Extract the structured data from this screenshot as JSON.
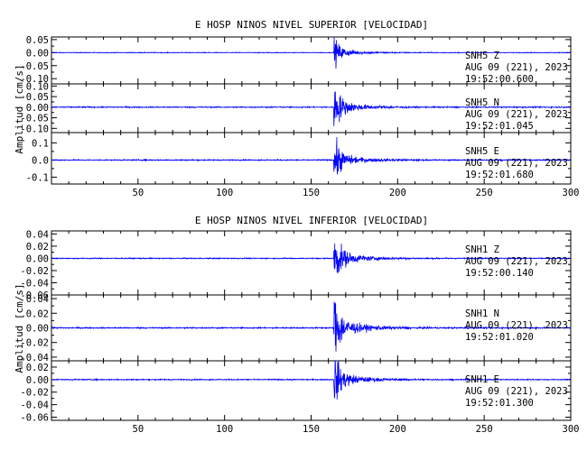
{
  "chart_data": [
    {
      "type": "line",
      "title": "E HOSP NINOS NIVEL SUPERIOR [VELOCIDAD]",
      "ylabel": "Amplitud [cm/s]",
      "xlim": [
        0,
        300
      ],
      "xticks": [
        "50",
        "100",
        "150",
        "200",
        "250",
        "300"
      ],
      "onset_x": 163,
      "line_color": "#0000ff",
      "traces": [
        {
          "station": "SNH5",
          "component": "Z",
          "date": "AUG 09 (221), 2023",
          "time": "19:52:00.600",
          "ylim": [
            -0.12,
            0.06
          ],
          "yticks": [
            "0.05",
            "0.00",
            "-0.05",
            "-0.10"
          ],
          "peak": 0.05,
          "coda": 0.014,
          "noise": 0.0012
        },
        {
          "station": "SNH5",
          "component": "N",
          "date": "AUG 09 (221), 2023",
          "time": "19:52:01.045",
          "ylim": [
            -0.12,
            0.11
          ],
          "yticks": [
            "0.10",
            "0.05",
            "0.00",
            "-0.05",
            "-0.10"
          ],
          "peak": 0.1,
          "coda": 0.03,
          "noise": 0.0025
        },
        {
          "station": "SNH5",
          "component": "E",
          "date": "AUG 09 (221), 2023",
          "time": "19:52:01.680",
          "ylim": [
            -0.14,
            0.16
          ],
          "yticks": [
            "0.1",
            "0.0",
            "-0.1"
          ],
          "peak": 0.12,
          "coda": 0.035,
          "noise": 0.003
        }
      ]
    },
    {
      "type": "line",
      "title": "E HOSP NINOS NIVEL INFERIOR [VELOCIDAD]",
      "ylabel": "Amplitud [cm/s]",
      "xlim": [
        0,
        300
      ],
      "xticks": [
        "50",
        "100",
        "150",
        "200",
        "250",
        "300"
      ],
      "onset_x": 163,
      "line_color": "#0000ff",
      "traces": [
        {
          "station": "SNH1",
          "component": "Z",
          "date": "AUG 09 (221), 2023",
          "time": "19:52:00.140",
          "ylim": [
            -0.06,
            0.045
          ],
          "yticks": [
            "0.04",
            "0.02",
            "0.00",
            "-0.02",
            "-0.04",
            "-0.06"
          ],
          "peak": 0.04,
          "coda": 0.012,
          "noise": 0.0008
        },
        {
          "station": "SNH1",
          "component": "N",
          "date": "AUG 09 (221), 2023",
          "time": "19:52:01.020",
          "ylim": [
            -0.045,
            0.045
          ],
          "yticks": [
            "0.04",
            "0.02",
            "0.00",
            "-0.02",
            "-0.04"
          ],
          "peak": 0.04,
          "coda": 0.013,
          "noise": 0.0008
        },
        {
          "station": "SNH1",
          "component": "E",
          "date": "AUG 09 (221), 2023",
          "time": "19:52:01.300",
          "ylim": [
            -0.065,
            0.03
          ],
          "yticks": [
            "0.02",
            "0.00",
            "-0.02",
            "-0.04",
            "-0.06"
          ],
          "peak": 0.035,
          "coda": 0.012,
          "noise": 0.0008
        }
      ]
    }
  ]
}
